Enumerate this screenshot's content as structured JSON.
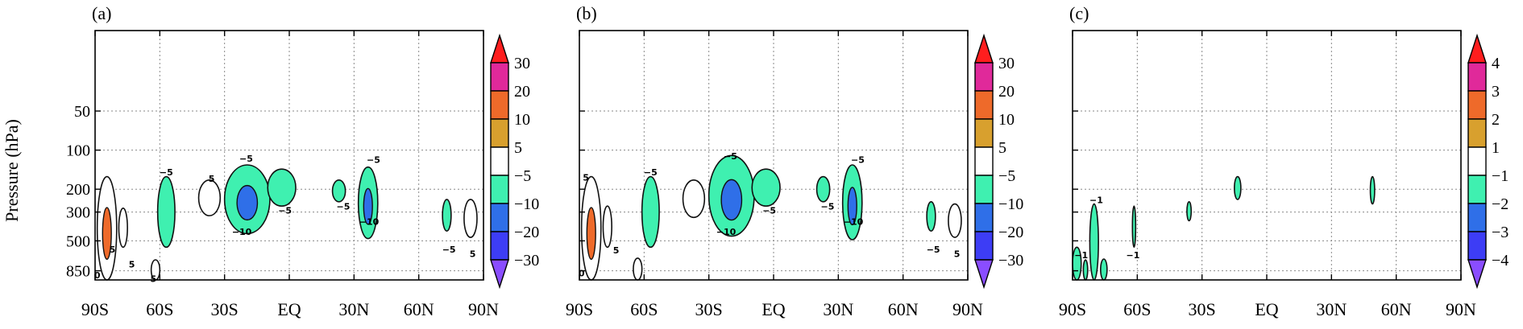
{
  "figure": {
    "ylabel": "Pressure (hPa)",
    "panel_tags": [
      "(a)",
      "(b)",
      "(c)"
    ]
  },
  "chart_data": [
    {
      "type": "contour",
      "panel": "(a)",
      "xlabel": "",
      "ylabel": "Pressure (hPa)",
      "xlim": [
        -90,
        90
      ],
      "x_tick_values": [
        -90,
        -60,
        -30,
        0,
        30,
        60,
        90
      ],
      "x_tick_labels": [
        "90S",
        "60S",
        "30S",
        "EQ",
        "30N",
        "60N",
        "90N"
      ],
      "y_axis": "pressure, log scale, reversed",
      "ylim_hPa": [
        1000,
        10
      ],
      "y_tick_values": [
        50,
        100,
        200,
        300,
        500,
        850
      ],
      "y_tick_labels": [
        "50",
        "100",
        "200",
        "300",
        "500",
        "850"
      ],
      "grid": true,
      "colorbar": {
        "levels": [
          -30,
          -20,
          -10,
          -5,
          5,
          10,
          20,
          30
        ],
        "labels": [
          "-30",
          "-20",
          "-10",
          "-5",
          "5",
          "10",
          "20",
          "30"
        ],
        "colors": [
          "#8a4dff",
          "#3d3df5",
          "#2f6fe8",
          "#3ff0b0",
          "#ffffff",
          "#d8a02e",
          "#ee6a2a",
          "#e0299a",
          "#ff1e1e"
        ]
      },
      "contour_labels": [
        {
          "text": "-5",
          "lat": -57,
          "p": 150
        },
        {
          "text": "5",
          "lat": -36,
          "p": 168
        },
        {
          "text": "-5",
          "lat": -20,
          "p": 118
        },
        {
          "text": "-10",
          "lat": -22,
          "p": 430
        },
        {
          "text": "-5",
          "lat": -2,
          "p": 295
        },
        {
          "text": "-5",
          "lat": 25,
          "p": 275
        },
        {
          "text": "-5",
          "lat": 39,
          "p": 120
        },
        {
          "text": "-10",
          "lat": 37,
          "p": 360
        },
        {
          "text": "-5",
          "lat": 74,
          "p": 590
        },
        {
          "text": "5",
          "lat": 85,
          "p": 640
        },
        {
          "text": "5",
          "lat": -82,
          "p": 590
        },
        {
          "text": "5",
          "lat": -73,
          "p": 770
        },
        {
          "text": "0",
          "lat": -89,
          "p": 930
        },
        {
          "text": "5",
          "lat": -63,
          "p": 990
        }
      ],
      "regions": [
        {
          "lat": [
            -89,
            -80
          ],
          "p": [
            160,
            1000
          ],
          "value": 5,
          "core_value": 20
        },
        {
          "lat": [
            -79,
            -75
          ],
          "p": [
            280,
            560
          ],
          "value": 5
        },
        {
          "lat": [
            -64,
            -60
          ],
          "p": [
            700,
            1000
          ],
          "value": 5
        },
        {
          "lat": [
            -61,
            -53
          ],
          "p": [
            160,
            560
          ],
          "value": -5
        },
        {
          "lat": [
            -42,
            -32
          ],
          "p": [
            170,
            320
          ],
          "value": 5
        },
        {
          "lat": [
            -30,
            -9
          ],
          "p": [
            130,
            440
          ],
          "value": -5,
          "core_value": -10
        },
        {
          "lat": [
            -10,
            3
          ],
          "p": [
            140,
            270
          ],
          "value": -5
        },
        {
          "lat": [
            20,
            26
          ],
          "p": [
            170,
            250
          ],
          "value": -5
        },
        {
          "lat": [
            32,
            41
          ],
          "p": [
            135,
            480
          ],
          "value": -5,
          "core_value": -10
        },
        {
          "lat": [
            71,
            75
          ],
          "p": [
            240,
            420
          ],
          "value": -5
        },
        {
          "lat": [
            81,
            87
          ],
          "p": [
            240,
            470
          ],
          "value": 5
        }
      ]
    },
    {
      "type": "contour",
      "panel": "(b)",
      "xlabel": "",
      "ylabel": "",
      "xlim": [
        -90,
        90
      ],
      "x_tick_values": [
        -90,
        -60,
        -30,
        0,
        30,
        60,
        90
      ],
      "x_tick_labels": [
        "90S",
        "60S",
        "30S",
        "EQ",
        "30N",
        "60N",
        "90N"
      ],
      "y_axis": "pressure, log scale, reversed",
      "ylim_hPa": [
        1000,
        10
      ],
      "y_tick_values": [
        50,
        100,
        200,
        300,
        500,
        850
      ],
      "grid": true,
      "colorbar": {
        "levels": [
          -30,
          -20,
          -10,
          -5,
          5,
          10,
          20,
          30
        ],
        "labels": [
          "-30",
          "-20",
          "-10",
          "-5",
          "5",
          "10",
          "20",
          "30"
        ],
        "colors": [
          "#8a4dff",
          "#3d3df5",
          "#2f6fe8",
          "#3ff0b0",
          "#ffffff",
          "#d8a02e",
          "#ee6a2a",
          "#e0299a",
          "#ff1e1e"
        ]
      },
      "contour_labels": [
        {
          "text": "5",
          "lat": -87,
          "p": 165
        },
        {
          "text": "-5",
          "lat": -57,
          "p": 150
        },
        {
          "text": "-5",
          "lat": -20,
          "p": 113
        },
        {
          "text": "-10",
          "lat": -22,
          "p": 430
        },
        {
          "text": "-5",
          "lat": -2,
          "p": 295
        },
        {
          "text": "-5",
          "lat": 25,
          "p": 275
        },
        {
          "text": "-5",
          "lat": 39,
          "p": 120
        },
        {
          "text": "-10",
          "lat": 37,
          "p": 360
        },
        {
          "text": "-5",
          "lat": 74,
          "p": 590
        },
        {
          "text": "5",
          "lat": 85,
          "p": 640
        },
        {
          "text": "5",
          "lat": -73,
          "p": 600
        },
        {
          "text": "0",
          "lat": -89,
          "p": 900
        }
      ],
      "regions": [
        {
          "lat": [
            -89,
            -80
          ],
          "p": [
            160,
            1000
          ],
          "value": 5,
          "core_value": 20
        },
        {
          "lat": [
            -79,
            -75
          ],
          "p": [
            270,
            560
          ],
          "value": 5
        },
        {
          "lat": [
            -65,
            -61
          ],
          "p": [
            680,
            1000
          ],
          "value": 5
        },
        {
          "lat": [
            -61,
            -53
          ],
          "p": [
            160,
            560
          ],
          "value": -5
        },
        {
          "lat": [
            -42,
            -32
          ],
          "p": [
            170,
            330
          ],
          "value": 5
        },
        {
          "lat": [
            -30,
            -9
          ],
          "p": [
            110,
            460
          ],
          "value": -5,
          "core_value": -10
        },
        {
          "lat": [
            -10,
            3
          ],
          "p": [
            140,
            270
          ],
          "value": -5
        },
        {
          "lat": [
            20,
            26
          ],
          "p": [
            160,
            250
          ],
          "value": -5
        },
        {
          "lat": [
            32,
            41
          ],
          "p": [
            130,
            490
          ],
          "value": -5,
          "core_value": -10
        },
        {
          "lat": [
            71,
            75
          ],
          "p": [
            250,
            420
          ],
          "value": -5
        },
        {
          "lat": [
            81,
            87
          ],
          "p": [
            260,
            470
          ],
          "value": 5
        }
      ]
    },
    {
      "type": "contour",
      "panel": "(c)",
      "xlabel": "",
      "ylabel": "",
      "xlim": [
        -90,
        90
      ],
      "x_tick_values": [
        -90,
        -60,
        -30,
        0,
        30,
        60,
        90
      ],
      "x_tick_labels": [
        "90S",
        "60S",
        "30S",
        "EQ",
        "30N",
        "60N",
        "90N"
      ],
      "y_axis": "pressure, log scale, reversed",
      "ylim_hPa": [
        1000,
        10
      ],
      "y_tick_values": [
        50,
        100,
        200,
        300,
        500,
        850
      ],
      "grid": true,
      "colorbar": {
        "levels": [
          -4,
          -3,
          -2,
          -1,
          1,
          2,
          3,
          4
        ],
        "labels": [
          "-4",
          "-3",
          "-2",
          "-1",
          "1",
          "2",
          "3",
          "4"
        ],
        "colors": [
          "#8a4dff",
          "#3d3df5",
          "#2f6fe8",
          "#3ff0b0",
          "#ffffff",
          "#d8a02e",
          "#ee6a2a",
          "#e0299a",
          "#ff1e1e"
        ]
      },
      "contour_labels": [
        {
          "text": "-1",
          "lat": -79,
          "p": 245
        },
        {
          "text": "-1",
          "lat": -86,
          "p": 650
        },
        {
          "text": "-1",
          "lat": -62,
          "p": 650
        }
      ],
      "regions": [
        {
          "lat": [
            -90,
            -86
          ],
          "p": [
            560,
            1000
          ],
          "value": -1
        },
        {
          "lat": [
            -85,
            -83
          ],
          "p": [
            700,
            1000
          ],
          "value": -1
        },
        {
          "lat": [
            -82,
            -78
          ],
          "p": [
            260,
            1000
          ],
          "value": -1
        },
        {
          "lat": [
            -77,
            -74
          ],
          "p": [
            690,
            1000
          ],
          "value": -1
        },
        {
          "lat": [
            -62,
            -61
          ],
          "p": [
            270,
            560
          ],
          "value": -1
        },
        {
          "lat": [
            -37,
            -35
          ],
          "p": [
            250,
            350
          ],
          "value": -1
        },
        {
          "lat": [
            -15,
            -12
          ],
          "p": [
            160,
            240
          ],
          "value": -1
        },
        {
          "lat": [
            48,
            50
          ],
          "p": [
            160,
            260
          ],
          "value": -1
        }
      ]
    }
  ]
}
